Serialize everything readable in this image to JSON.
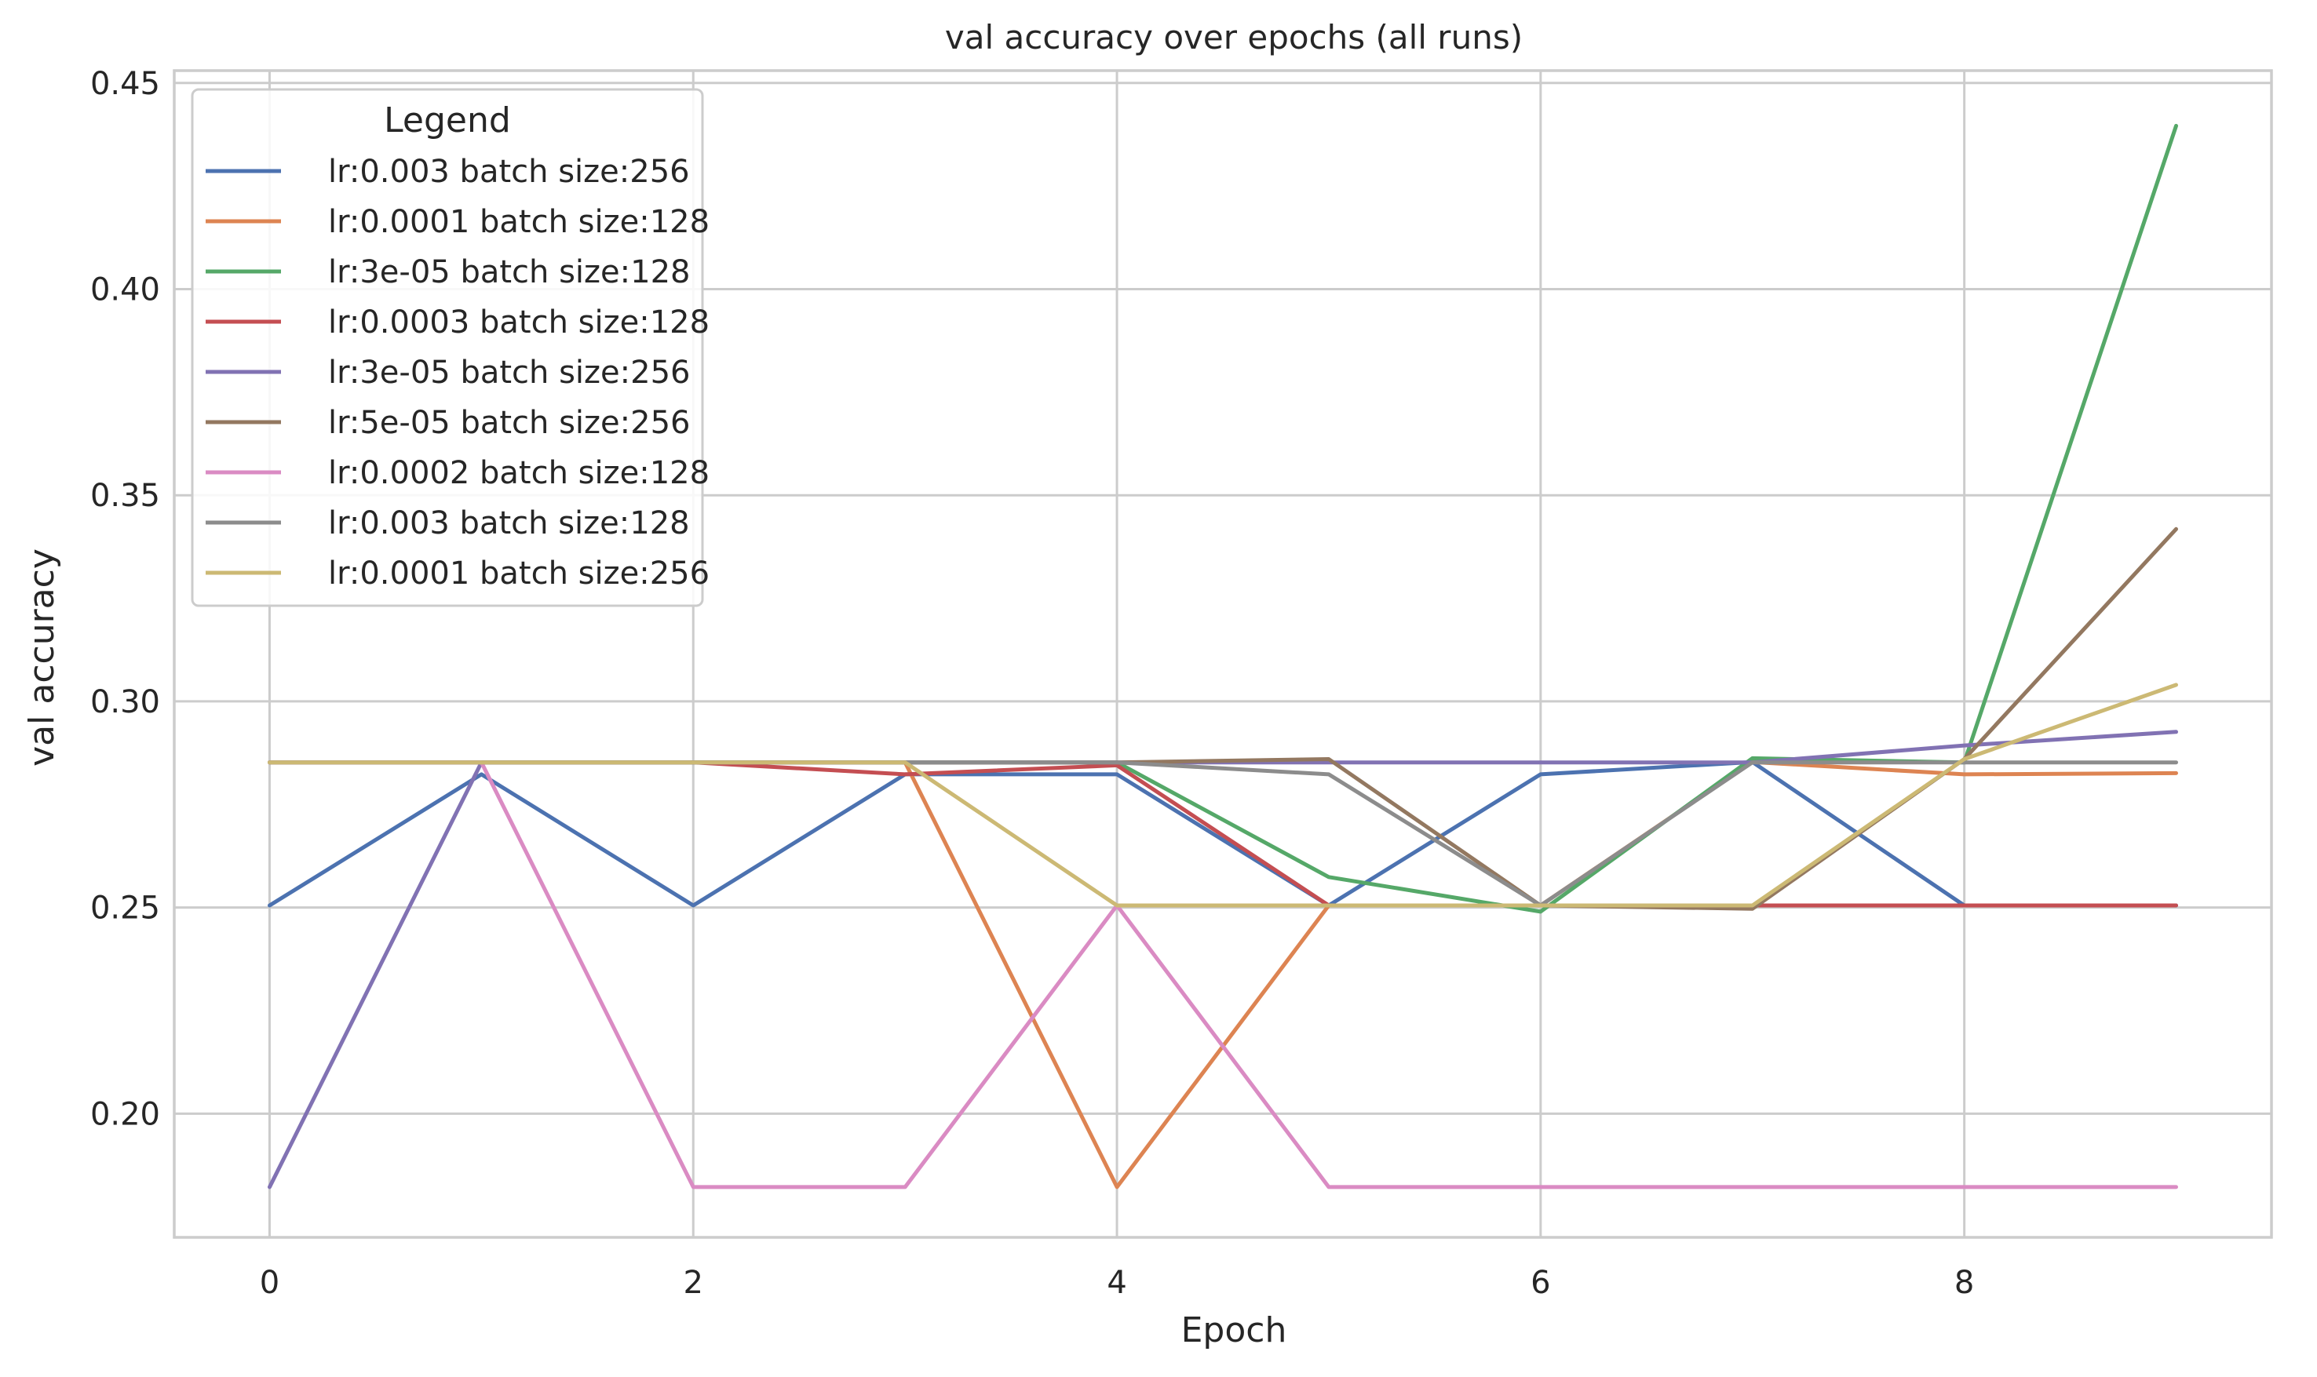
{
  "chart_data": {
    "type": "line",
    "title": "val accuracy over epochs (all runs)",
    "xlabel": "Epoch",
    "ylabel": "val accuracy",
    "xlim": [
      -0.45,
      9.45
    ],
    "ylim": [
      0.17,
      0.453
    ],
    "xticks": [
      0,
      2,
      4,
      6,
      8
    ],
    "xtick_labels": [
      "0",
      "2",
      "4",
      "6",
      "8"
    ],
    "yticks": [
      0.2,
      0.25,
      0.3,
      0.35,
      0.4,
      0.45
    ],
    "ytick_labels": [
      "0.20",
      "0.25",
      "0.30",
      "0.35",
      "0.40",
      "0.45"
    ],
    "grid": true,
    "legend": {
      "title": "Legend",
      "placement": "top-left"
    },
    "x": [
      0,
      1,
      2,
      3,
      4,
      5,
      6,
      7,
      8,
      9
    ],
    "series": [
      {
        "name": "lr:0.003 batch size:256",
        "color": "#4c72b0",
        "values": [
          0.2505,
          0.2823,
          0.2505,
          0.2823,
          0.2823,
          0.2505,
          0.2823,
          0.2853,
          0.2505,
          0.2505
        ]
      },
      {
        "name": "lr:0.0001 batch size:128",
        "color": "#dd8452",
        "values": [
          0.2852,
          0.2852,
          0.2852,
          0.2852,
          0.1822,
          0.2505,
          0.2505,
          0.2853,
          0.2823,
          0.2826
        ]
      },
      {
        "name": "lr:3e-05 batch size:128",
        "color": "#55a868",
        "values": [
          0.2852,
          0.2852,
          0.2852,
          0.2852,
          0.2852,
          0.2574,
          0.249,
          0.2862,
          0.2852,
          0.4396
        ]
      },
      {
        "name": "lr:0.0003 batch size:128",
        "color": "#c44e52",
        "values": [
          0.2852,
          0.2852,
          0.2852,
          0.2823,
          0.2845,
          0.2505,
          0.2505,
          0.2505,
          0.2505,
          0.2505
        ]
      },
      {
        "name": "lr:3e-05 batch size:256",
        "color": "#8172b3",
        "values": [
          0.1822,
          0.2852,
          0.2852,
          0.2852,
          0.2852,
          0.2852,
          0.2852,
          0.2852,
          0.2893,
          0.2926
        ]
      },
      {
        "name": "lr:5e-05 batch size:256",
        "color": "#937860",
        "values": [
          0.2852,
          0.2852,
          0.2852,
          0.2852,
          0.2852,
          0.286,
          0.2505,
          0.2497,
          0.286,
          0.3418
        ]
      },
      {
        "name": "lr:0.0002 batch size:128",
        "color": "#da8bc3",
        "values": [
          0.2852,
          0.2852,
          0.1822,
          0.1822,
          0.2505,
          0.1822,
          0.1822,
          0.1822,
          0.1822,
          0.1822
        ]
      },
      {
        "name": "lr:0.003 batch size:128",
        "color": "#8c8c8c",
        "values": [
          0.2852,
          0.2852,
          0.2852,
          0.2852,
          0.2852,
          0.2823,
          0.2505,
          0.2852,
          0.2852,
          0.2852
        ]
      },
      {
        "name": "lr:0.0001 batch size:256",
        "color": "#ccb974",
        "values": [
          0.2852,
          0.2852,
          0.2852,
          0.2852,
          0.2505,
          0.2505,
          0.2505,
          0.2505,
          0.286,
          0.304
        ]
      }
    ]
  }
}
